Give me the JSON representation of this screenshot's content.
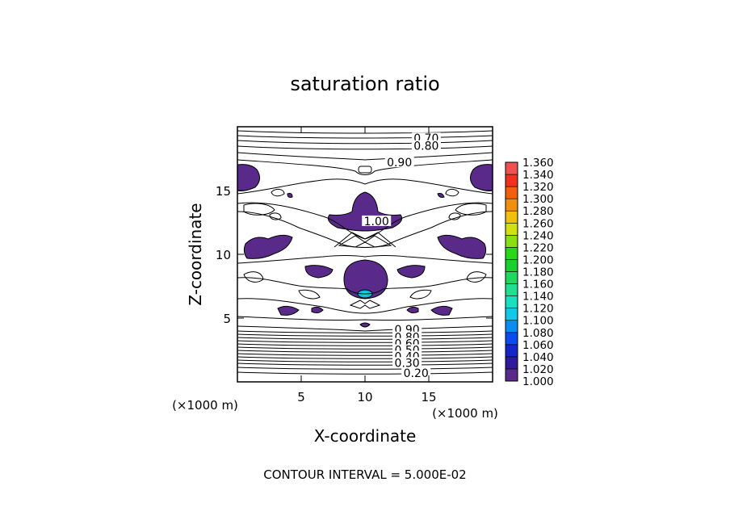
{
  "chart_data": {
    "type": "heatmap",
    "title": "saturation ratio",
    "xlabel": "X-coordinate",
    "ylabel": "Z-coordinate",
    "x_unit_label": "(×1000 m)",
    "y_unit_label": "(×1000 m)",
    "xlim": [
      0,
      20
    ],
    "ylim": [
      0,
      20
    ],
    "x_ticks": [
      5,
      10,
      15
    ],
    "y_ticks": [
      5,
      10,
      15
    ],
    "footer": "CONTOUR INTERVAL = 5.000E-02",
    "contour_labels": [
      {
        "text": "0.70",
        "x": 14.8,
        "z": 19.1
      },
      {
        "text": "0.80",
        "x": 14.8,
        "z": 18.5
      },
      {
        "text": "0.90",
        "x": 12.7,
        "z": 17.2
      },
      {
        "text": "1.00",
        "x": 10.9,
        "z": 12.6
      },
      {
        "text": "0.90",
        "x": 13.3,
        "z": 4.1
      },
      {
        "text": "0.80",
        "x": 13.3,
        "z": 3.5
      },
      {
        "text": "0.60",
        "x": 13.3,
        "z": 3.0
      },
      {
        "text": "0.50",
        "x": 13.3,
        "z": 2.5
      },
      {
        "text": "0.40",
        "x": 13.3,
        "z": 2.0
      },
      {
        "text": "0.30",
        "x": 13.3,
        "z": 1.5
      },
      {
        "text": "0.20",
        "x": 14.0,
        "z": 0.7
      }
    ],
    "filled_regions_value_min": 1.0,
    "colorbar": {
      "levels": [
        "1.000",
        "1.020",
        "1.040",
        "1.060",
        "1.080",
        "1.100",
        "1.120",
        "1.140",
        "1.160",
        "1.180",
        "1.200",
        "1.220",
        "1.240",
        "1.260",
        "1.280",
        "1.300",
        "1.320",
        "1.340",
        "1.360"
      ],
      "colors": [
        "#5a2a8a",
        "#2f1a9a",
        "#1426c8",
        "#0a4af0",
        "#0a8cf0",
        "#12c8e8",
        "#18e0c0",
        "#20e090",
        "#20d860",
        "#18d030",
        "#28d818",
        "#88e010",
        "#d0e010",
        "#f0c010",
        "#f09010",
        "#f06010",
        "#f03020",
        "#f05050",
        "#f09090"
      ]
    }
  }
}
